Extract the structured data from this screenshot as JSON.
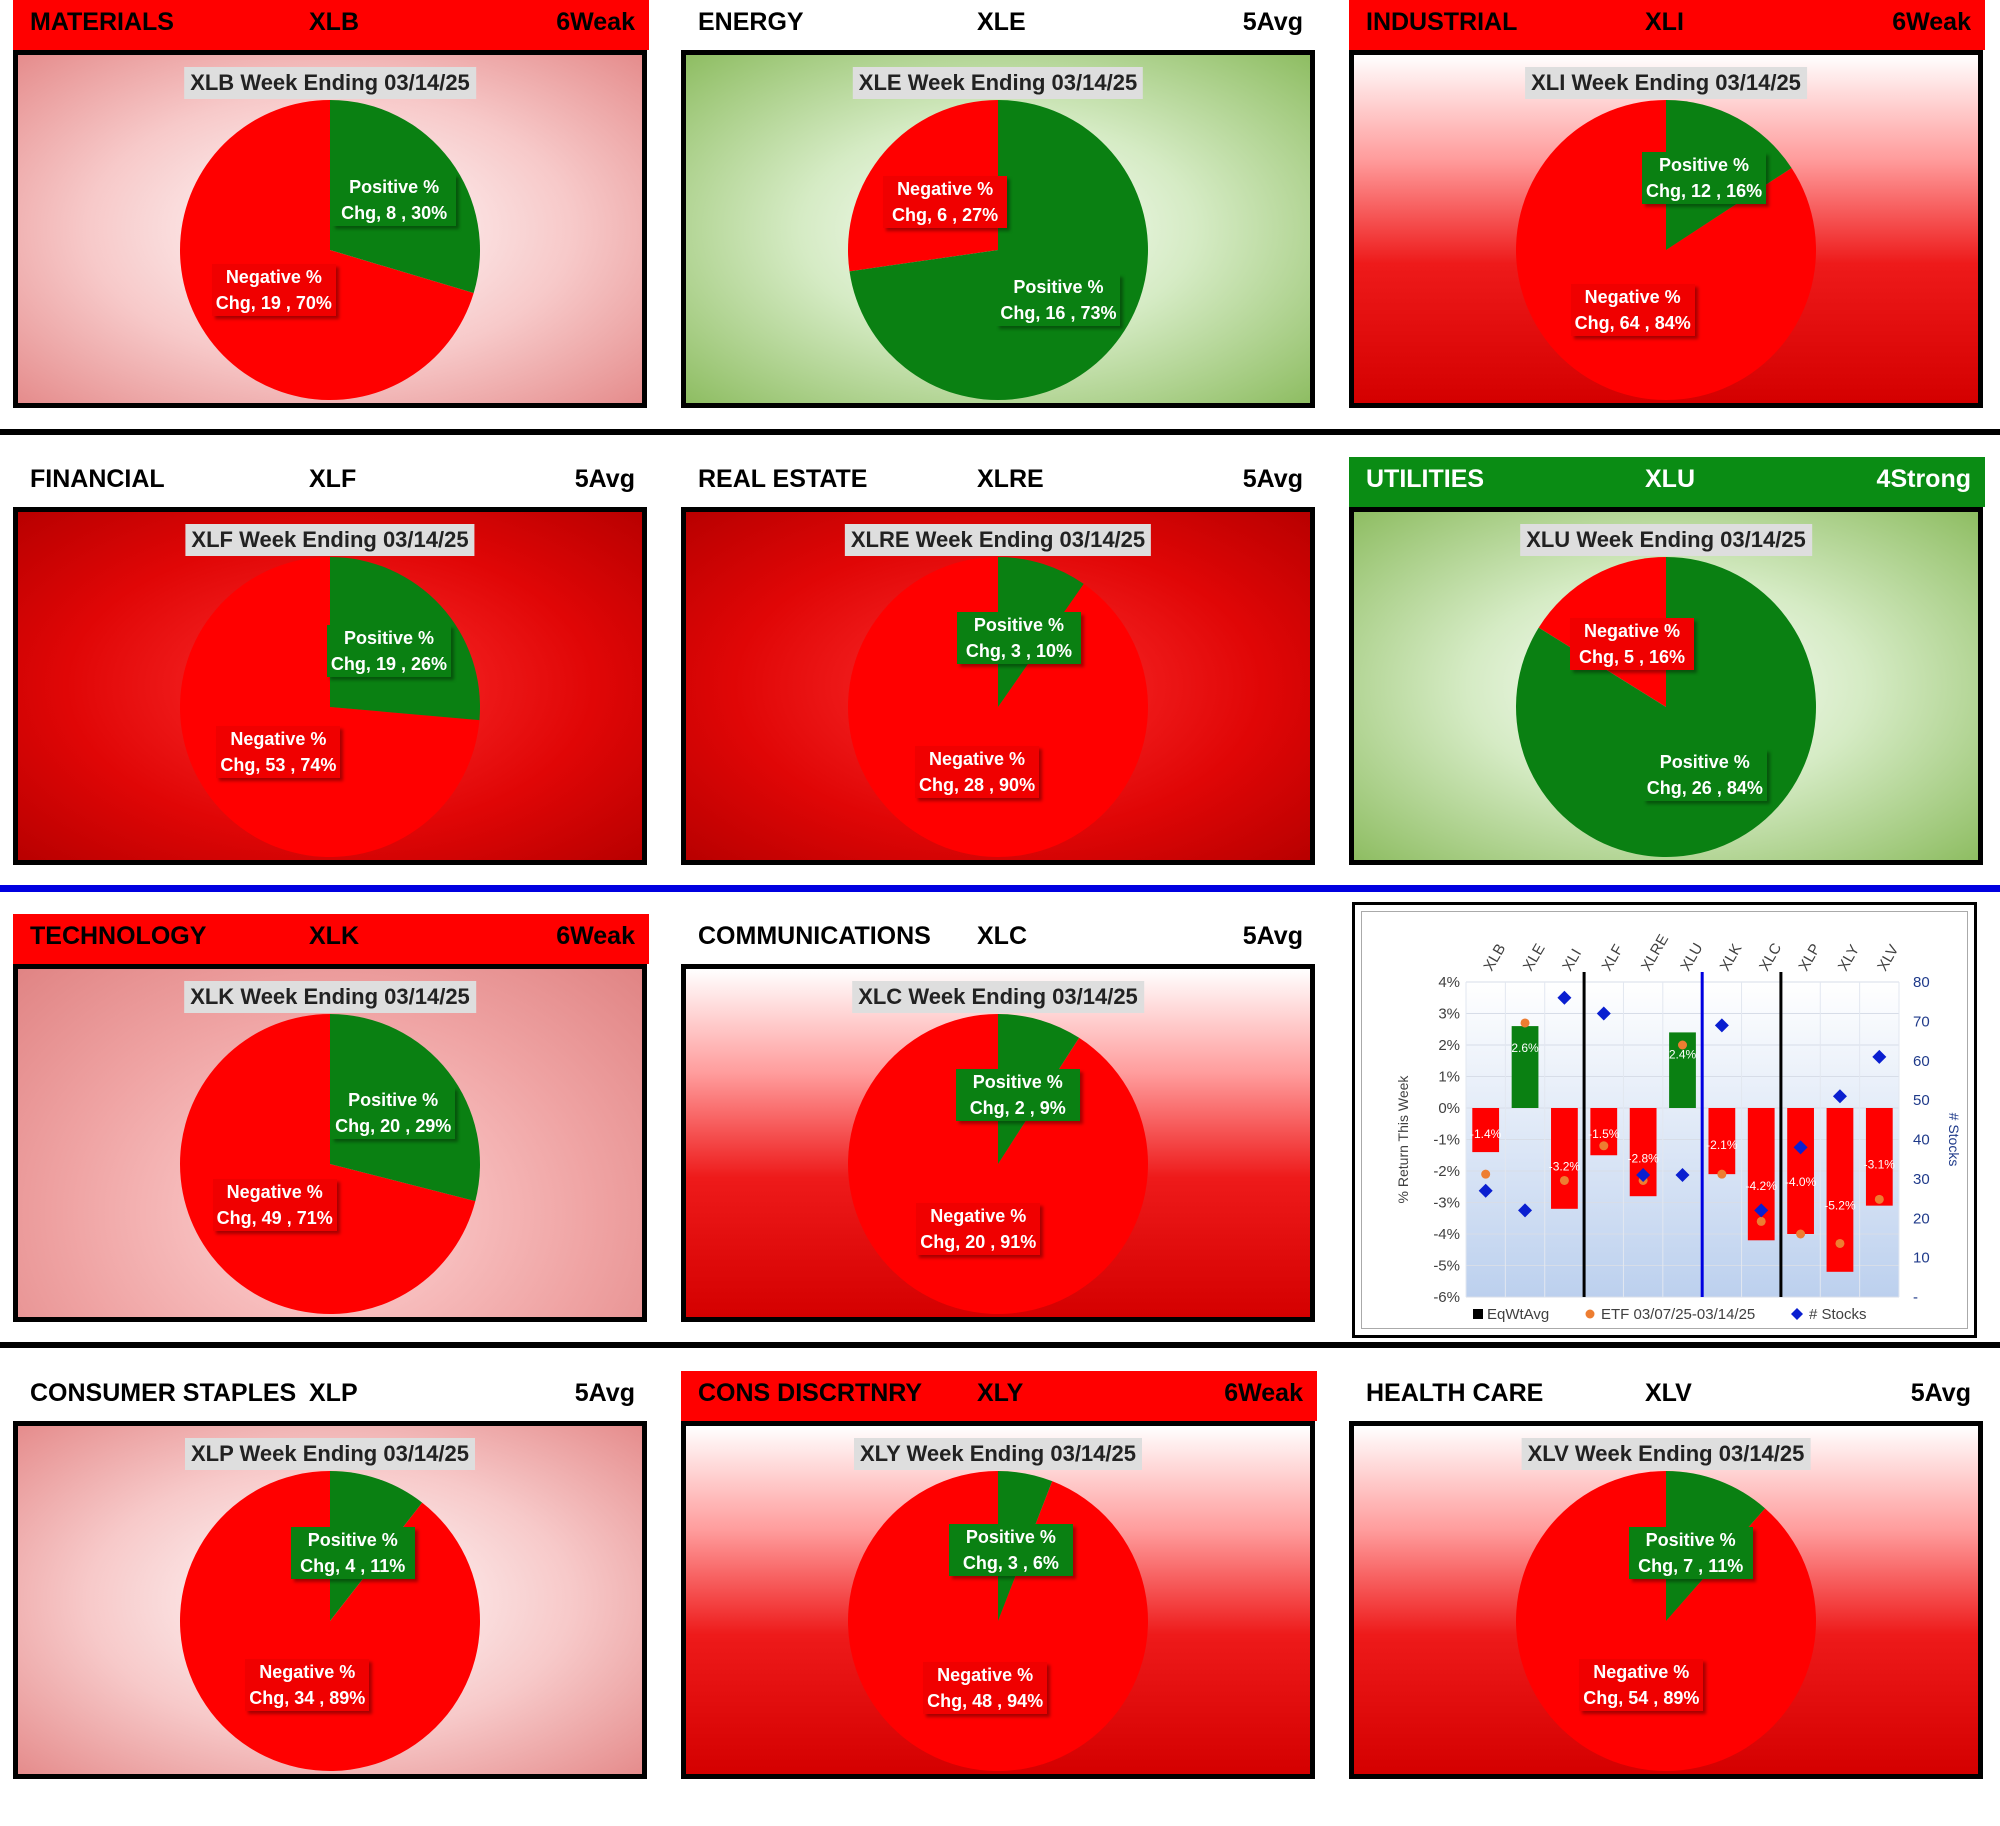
{
  "week_label": "Week Ending 03/14/25",
  "positive_label": "Positive %",
  "negative_label": "Negative %",
  "chg_label": "Chg,",
  "colors": {
    "positive": "#0a8012",
    "negative": "#ff0000",
    "header_red": "#ff0000",
    "header_green": "#0a8c14"
  },
  "sectors": [
    {
      "name": "MATERIALS",
      "ticker": "XLB",
      "rating": "6Weak",
      "header_style": "red",
      "bg": "pink",
      "positive_count": 8,
      "positive_pct": "30%",
      "negative_count": 19,
      "negative_pct": "70%"
    },
    {
      "name": "ENERGY",
      "ticker": "XLE",
      "rating": "5Avg",
      "header_style": "none",
      "bg": "green",
      "positive_count": 16,
      "positive_pct": "73%",
      "negative_count": 6,
      "negative_pct": "27%"
    },
    {
      "name": "INDUSTRIAL",
      "ticker": "XLI",
      "rating": "6Weak",
      "header_style": "red",
      "bg": "redwhite",
      "positive_count": 12,
      "positive_pct": "16%",
      "negative_count": 64,
      "negative_pct": "84%"
    },
    {
      "name": "FINANCIAL",
      "ticker": "XLF",
      "rating": "5Avg",
      "header_style": "none",
      "bg": "red",
      "positive_count": 19,
      "positive_pct": "26%",
      "negative_count": 53,
      "negative_pct": "74%"
    },
    {
      "name": "REAL ESTATE",
      "ticker": "XLRE",
      "rating": "5Avg",
      "header_style": "none",
      "bg": "red",
      "positive_count": 3,
      "positive_pct": "10%",
      "negative_count": 28,
      "negative_pct": "90%"
    },
    {
      "name": "UTILITIES",
      "ticker": "XLU",
      "rating": "4Strong",
      "header_style": "green",
      "bg": "green",
      "positive_count": 26,
      "positive_pct": "84%",
      "negative_count": 5,
      "negative_pct": "16%"
    },
    {
      "name": "TECHNOLOGY",
      "ticker": "XLK",
      "rating": "6Weak",
      "header_style": "red",
      "bg": "pinkfade",
      "positive_count": 20,
      "positive_pct": "29%",
      "negative_count": 49,
      "negative_pct": "71%"
    },
    {
      "name": "COMMUNICATIONS",
      "ticker": "XLC",
      "rating": "5Avg",
      "header_style": "none",
      "bg": "redwhite",
      "positive_count": 2,
      "positive_pct": "9%",
      "negative_count": 20,
      "negative_pct": "91%"
    },
    null,
    {
      "name": "CONSUMER STAPLES",
      "ticker": "XLP",
      "rating": "5Avg",
      "header_style": "none",
      "bg": "pink",
      "positive_count": 4,
      "positive_pct": "11%",
      "negative_count": 34,
      "negative_pct": "89%"
    },
    {
      "name": "CONS DISCRTNRY",
      "ticker": "XLY",
      "rating": "6Weak",
      "header_style": "red",
      "bg": "redwhite",
      "positive_count": 3,
      "positive_pct": "6%",
      "negative_count": 48,
      "negative_pct": "94%"
    },
    {
      "name": "HEALTH CARE",
      "ticker": "XLV",
      "rating": "5Avg",
      "header_style": "none",
      "bg": "redwhite",
      "positive_count": 7,
      "positive_pct": "11%",
      "negative_count": 54,
      "negative_pct": "89%"
    }
  ],
  "chart_data": {
    "type": "bar",
    "categories": [
      "XLB",
      "XLE",
      "XLI",
      "XLF",
      "XLRE",
      "XLU",
      "XLK",
      "XLC",
      "XLP",
      "XLY",
      "XLV"
    ],
    "ylabel": "% Return This Week",
    "y2label": "# Stocks",
    "ylim": [
      -6,
      4
    ],
    "y2lim": [
      0,
      80
    ],
    "y_ticks": [
      "4%",
      "3%",
      "2%",
      "1%",
      "0%",
      "-1%",
      "-2%",
      "-3%",
      "-4%",
      "-5%",
      "-6%"
    ],
    "y2_ticks": [
      "80",
      "70",
      "60",
      "50",
      "40",
      "30",
      "20",
      "10",
      "-"
    ],
    "series": [
      {
        "name": "EqWtAvg",
        "kind": "bar",
        "values": [
          -1.4,
          2.6,
          -3.2,
          -1.5,
          -2.8,
          2.4,
          -2.1,
          -4.2,
          -4.0,
          -5.2,
          -3.1
        ],
        "labels": [
          "-1.4%",
          "2.6%",
          "-3.2%",
          "-1.5%",
          "-2.8%",
          "2.4%",
          "-2.1%",
          "-4.2%",
          "-4.0%",
          "-5.2%",
          "-3.1%"
        ]
      },
      {
        "name": "ETF 03/07/25-03/14/25",
        "kind": "dot",
        "values": [
          -2.1,
          2.7,
          -2.3,
          -1.2,
          -2.3,
          2.0,
          -2.1,
          -3.6,
          -4.0,
          -4.3,
          -2.9
        ]
      },
      {
        "name": "# Stocks",
        "kind": "diamond",
        "axis": "secondary",
        "values": [
          27,
          22,
          76,
          72,
          31,
          31,
          69,
          22,
          38,
          51,
          61
        ]
      }
    ],
    "dividers": [
      {
        "after_index": 2,
        "color": "black"
      },
      {
        "after_index": 5,
        "color": "blue"
      },
      {
        "after_index": 7,
        "color": "black"
      }
    ]
  }
}
